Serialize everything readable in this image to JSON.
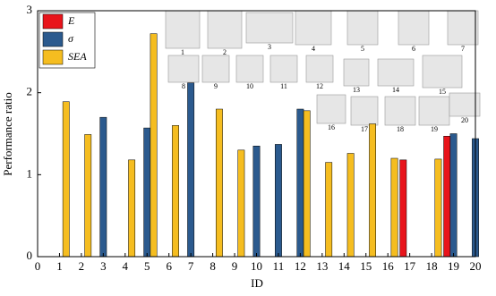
{
  "chart_data": {
    "type": "bar",
    "x_label": "ID",
    "y_label": "Performance ratio",
    "x": [
      1,
      2,
      3,
      4,
      5,
      6,
      7,
      8,
      9,
      10,
      11,
      12,
      13,
      14,
      15,
      16,
      17,
      18,
      19,
      20
    ],
    "xlim": [
      0,
      20
    ],
    "xticks": [
      0,
      1,
      2,
      3,
      4,
      5,
      6,
      7,
      8,
      9,
      10,
      11,
      12,
      13,
      14,
      15,
      16,
      17,
      18,
      19,
      20
    ],
    "ylim": [
      0,
      3
    ],
    "yticks": [
      0,
      1,
      2,
      3
    ],
    "legend": "upper left",
    "series": [
      {
        "name": "E",
        "color": "#e8141b",
        "values": [
          null,
          null,
          null,
          null,
          null,
          null,
          null,
          null,
          null,
          null,
          null,
          null,
          null,
          null,
          null,
          null,
          1.18,
          null,
          1.47,
          null
        ]
      },
      {
        "name": "σ",
        "color": "#2b5a8e",
        "values": [
          null,
          null,
          1.7,
          null,
          1.57,
          null,
          2.12,
          null,
          null,
          1.35,
          1.37,
          1.8,
          null,
          null,
          null,
          null,
          null,
          null,
          1.5,
          1.44
        ]
      },
      {
        "name": "SEA",
        "color": "#f5bd20",
        "values": [
          1.89,
          1.49,
          null,
          1.18,
          2.72,
          1.6,
          null,
          1.8,
          1.3,
          null,
          null,
          1.78,
          1.15,
          1.26,
          1.62,
          1.2,
          null,
          1.19,
          null,
          null
        ]
      }
    ],
    "insets": [
      "1",
      "2",
      "3",
      "4",
      "5",
      "6",
      "7",
      "8",
      "9",
      "10",
      "11",
      "12",
      "13",
      "14",
      "15",
      "16",
      "17",
      "18",
      "19",
      "20"
    ]
  }
}
